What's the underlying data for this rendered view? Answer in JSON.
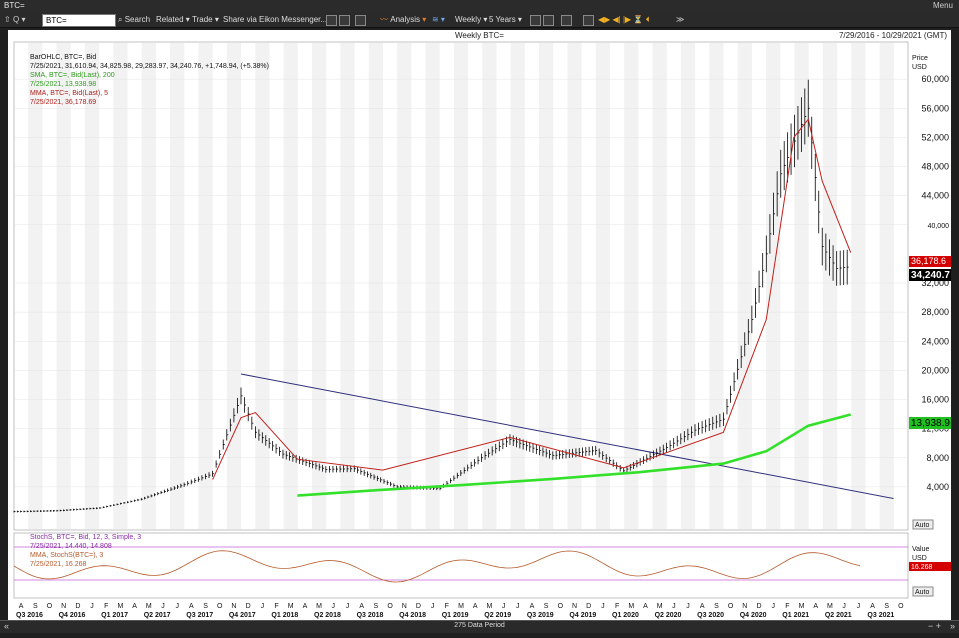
{
  "window": {
    "title": "BTC=",
    "menu_label": "Menu"
  },
  "toolbar": {
    "ric_value": "BTC=",
    "search": "Search",
    "related": "Related",
    "trade": "Trade",
    "share": "Share via Eikon Messenger...",
    "analysis": "Analysis",
    "interval": "Weekly",
    "period": "5 Years"
  },
  "chart_header": {
    "title": "Weekly BTC=",
    "date_range": "7/29/2016 - 10/29/2021 (GMT)"
  },
  "legend": {
    "ohlc_name": "BarOHLC, BTC=, Bid",
    "ohlc_values": "7/25/2021, 31,610.94, 34,825.98, 29,283.97, 34,240.76, +1,748.94, (+5.38%)",
    "sma_name": "SMA, BTC=, Bid(Last), 200",
    "sma_value": "7/25/2021, 13,938.98",
    "mma_name": "MMA, BTC=, Bid(Last), 5",
    "mma_value": "7/25/2021, 36,178.69"
  },
  "price_axis": {
    "title": "Price",
    "unit": "USD",
    "ticks": [
      "60,000",
      "56,000",
      "52,000",
      "48,000",
      "44,000",
      "40,000",
      "32,000",
      "28,000",
      "24,000",
      "20,000",
      "16,000",
      "12,000",
      "8,000",
      "4,000"
    ],
    "auto": "Auto",
    "tag_mma": "36,178.6",
    "tag_last": "34,240.7",
    "tag_sma": "13,938.9"
  },
  "stoch_legend": {
    "line1": "StochS, BTC=, Bid, 12, 3, Simple, 3",
    "line2": "7/25/2021, 14.440, 14.808",
    "line3": "MMA, StochS(BTC=), 3",
    "line4": "7/25/2021, 16.268"
  },
  "stoch_axis": {
    "title": "Value",
    "unit": "USD",
    "tag": "16.268",
    "auto": "Auto"
  },
  "time_axis": {
    "months": [
      "A",
      "S",
      "O",
      "N",
      "D",
      "J",
      "F",
      "M",
      "A",
      "M",
      "J",
      "J",
      "A",
      "S",
      "O",
      "N",
      "D",
      "J",
      "F",
      "M",
      "A",
      "M",
      "J",
      "J",
      "A",
      "S",
      "O",
      "N",
      "D",
      "J",
      "F",
      "M",
      "A",
      "M",
      "J",
      "J",
      "A",
      "S",
      "O",
      "N",
      "D",
      "J",
      "F",
      "M",
      "A",
      "M",
      "J",
      "J",
      "A",
      "S",
      "O",
      "N",
      "D",
      "J",
      "F",
      "M",
      "A",
      "M",
      "J",
      "J",
      "A",
      "S",
      "O"
    ],
    "quarters": [
      "Q3 2016",
      "Q4 2016",
      "Q1 2017",
      "Q2 2017",
      "Q3 2017",
      "Q4 2017",
      "Q1 2018",
      "Q2 2018",
      "Q3 2018",
      "Q4 2018",
      "Q1 2019",
      "Q2 2019",
      "Q3 2019",
      "Q4 2019",
      "Q1 2020",
      "Q2 2020",
      "Q3 2020",
      "Q4 2020",
      "Q1 2021",
      "Q2 2021",
      "Q3 2021"
    ]
  },
  "footer": {
    "data_period": "275 Data Period"
  },
  "colors": {
    "background": "#ffffff",
    "bars": "#000000",
    "sma": "#33e02a",
    "mma": "#c0201a",
    "trendline": "#2e2f7a",
    "stoch": "#b55a2a",
    "stoch_band": "#c060d0"
  },
  "chart_data": {
    "type": "ohlc",
    "interval": "Weekly",
    "y_scale": "linear",
    "ylim": [
      0,
      64000
    ],
    "series": [
      {
        "name": "BarOHLC, BTC=, Bid",
        "type": "ohlc",
        "x": [
          "2016-08",
          "2016-11",
          "2017-02",
          "2017-05",
          "2017-08",
          "2017-10",
          "2017-12",
          "2018-01",
          "2018-03",
          "2018-06",
          "2018-08",
          "2018-11",
          "2019-02",
          "2019-05",
          "2019-07",
          "2019-10",
          "2020-01",
          "2020-03",
          "2020-06",
          "2020-08",
          "2020-10",
          "2020-12",
          "2021-01",
          "2021-02",
          "2021-04",
          "2021-05",
          "2021-06",
          "2021-07"
        ],
        "close": [
          600,
          720,
          1100,
          2300,
          4300,
          5800,
          16500,
          11500,
          8500,
          6400,
          6500,
          4000,
          3800,
          8000,
          10500,
          8300,
          9000,
          6200,
          9400,
          11800,
          13300,
          27000,
          36000,
          47000,
          56000,
          37000,
          34000,
          34240
        ]
      },
      {
        "name": "SMA, BTC=, Bid(Last), 200",
        "x": [
          "2018-04",
          "2018-10",
          "2019-04",
          "2019-10",
          "2020-04",
          "2020-10",
          "2021-01",
          "2021-04",
          "2021-07"
        ],
        "values": [
          2800,
          3600,
          4300,
          5100,
          6000,
          7200,
          8900,
          12400,
          13939
        ]
      },
      {
        "name": "MMA, BTC=, Bid(Last), 5",
        "x": [
          "2017-10",
          "2017-12",
          "2018-01",
          "2018-04",
          "2018-10",
          "2019-07",
          "2020-03",
          "2020-10",
          "2021-01",
          "2021-03",
          "2021-04",
          "2021-05",
          "2021-07"
        ],
        "values": [
          5000,
          13500,
          14200,
          7800,
          6300,
          10800,
          6600,
          11500,
          27000,
          52000,
          54500,
          46000,
          36179
        ]
      }
    ],
    "trendline": {
      "from": [
        "2017-12",
        19500
      ],
      "to": [
        "2021-10",
        2400
      ]
    }
  }
}
